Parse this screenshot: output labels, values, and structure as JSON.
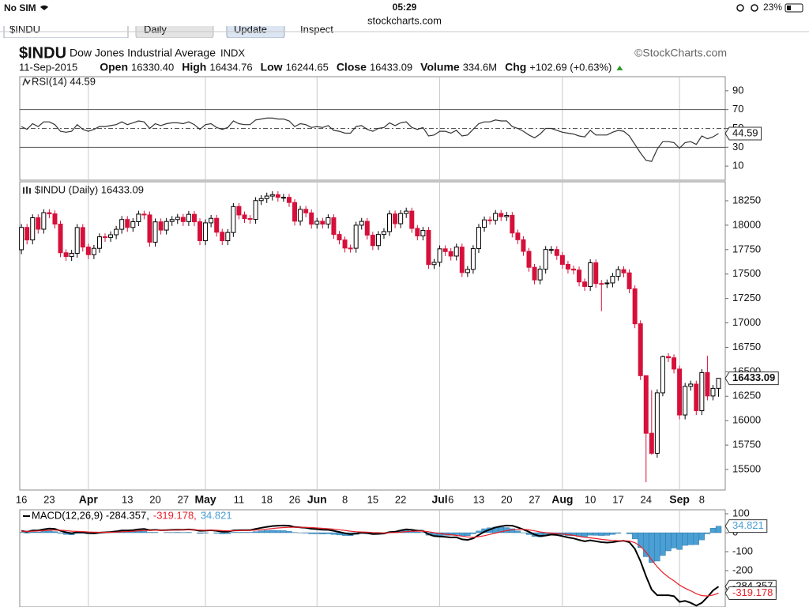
{
  "status_bar": {
    "carrier": "No SIM",
    "time": "05:29",
    "url": "stockcharts.com",
    "battery": "23%"
  },
  "toolbar": [
    "$INDU",
    "Daily",
    "Update",
    "Inspect"
  ],
  "header": {
    "symbol": "$INDU",
    "name": "Dow Jones Industrial Average",
    "exchange": "INDX",
    "credit": "©StockCharts.com",
    "date": "11-Sep-2015",
    "stats": [
      {
        "label": "Open",
        "value": "16330.40"
      },
      {
        "label": "High",
        "value": "16434.76"
      },
      {
        "label": "Low",
        "value": "16244.65"
      },
      {
        "label": "Close",
        "value": "16433.09"
      },
      {
        "label": "Volume",
        "value": "334.6M"
      },
      {
        "label": "Chg",
        "value": "+102.69 (+0.63%)"
      }
    ]
  },
  "chart_data": [
    {
      "type": "line",
      "title": "RSI(14) 44.59",
      "color": "#333333",
      "ylim": [
        -5,
        105
      ],
      "yticks": [
        10,
        30,
        50,
        70,
        90
      ],
      "hlines": [
        30,
        70
      ],
      "dashed_hline": 50,
      "value_label": "44.59",
      "values": [
        52,
        49,
        55,
        52,
        57,
        57,
        54,
        47,
        46,
        47,
        54,
        49,
        47,
        49,
        52,
        52,
        53,
        54,
        57,
        54,
        56,
        58,
        57,
        50,
        55,
        53,
        55,
        56,
        56,
        55,
        57,
        54,
        49,
        54,
        55,
        51,
        49,
        51,
        58,
        55,
        54,
        54,
        59,
        60,
        61,
        61,
        60,
        60,
        58,
        52,
        55,
        54,
        51,
        52,
        51,
        53,
        48,
        47,
        45,
        45,
        52,
        53,
        49,
        47,
        50,
        51,
        56,
        53,
        56,
        57,
        51,
        49,
        51,
        42,
        43,
        47,
        47,
        45,
        48,
        42,
        43,
        49,
        55,
        57,
        57,
        59,
        58,
        58,
        52,
        50,
        47,
        43,
        40,
        44,
        50,
        50,
        48,
        46,
        45,
        44,
        42,
        41,
        48,
        43,
        43,
        43,
        46,
        48,
        47,
        42,
        33,
        24,
        16,
        15,
        28,
        36,
        36,
        35,
        29,
        35,
        36,
        33,
        42,
        39,
        41,
        44.59
      ]
    },
    {
      "type": "candlestick",
      "title": "$INDU (Daily) 16433.09",
      "up_color": "#000000",
      "down_color": "#d6103b",
      "value_label": "16433.09",
      "ylim": [
        15290,
        18444
      ],
      "yticks": [
        15500,
        15750,
        16000,
        16250,
        16500,
        16750,
        17000,
        17250,
        17500,
        17750,
        18000,
        18250
      ],
      "xlim": [
        -0.3,
        126.2
      ],
      "xticks": [
        {
          "value": 0,
          "label": "16"
        },
        {
          "value": 5,
          "label": "23"
        },
        {
          "value": 12,
          "label": "Apr"
        },
        {
          "value": 19,
          "label": "13"
        },
        {
          "value": 24,
          "label": "20"
        },
        {
          "value": 29,
          "label": "27"
        },
        {
          "value": 33,
          "label": "May"
        },
        {
          "value": 39,
          "label": "11"
        },
        {
          "value": 44,
          "label": "18"
        },
        {
          "value": 49,
          "label": "26"
        },
        {
          "value": 53,
          "label": "Jun"
        },
        {
          "value": 58,
          "label": "8"
        },
        {
          "value": 63,
          "label": "15"
        },
        {
          "value": 68,
          "label": "22"
        },
        {
          "value": 75,
          "label": "Jul"
        },
        {
          "value": 77,
          "label": "6"
        },
        {
          "value": 82,
          "label": "13"
        },
        {
          "value": 87,
          "label": "20"
        },
        {
          "value": 92,
          "label": "27"
        },
        {
          "value": 97,
          "label": "Aug"
        },
        {
          "value": 102,
          "label": "10"
        },
        {
          "value": 107,
          "label": "17"
        },
        {
          "value": 112,
          "label": "24"
        },
        {
          "value": 118,
          "label": "Sep"
        },
        {
          "value": 122,
          "label": "8"
        }
      ],
      "open": [
        17749,
        17977,
        17849,
        18076,
        17959,
        18128,
        18116,
        18011,
        17718,
        17679,
        17712,
        17976,
        17776,
        17698,
        17763,
        17881,
        17875,
        17902,
        17958,
        18058,
        17977,
        18036,
        18113,
        18105,
        17826,
        18034,
        17950,
        18038,
        18058,
        18080,
        18037,
        18111,
        18035,
        17841,
        18024,
        18070,
        17928,
        17841,
        17925,
        18191,
        18105,
        18068,
        18060,
        18252,
        18272,
        18298,
        18312,
        18285,
        18285,
        18232,
        18041,
        18162,
        18126,
        18010,
        18040,
        18011,
        18076,
        17905,
        17849,
        17766,
        17764,
        18000,
        18039,
        17898,
        17791,
        17905,
        17935,
        18115,
        18015,
        18119,
        18144,
        17967,
        17890,
        17947,
        17597,
        17620,
        17758,
        17730,
        17684,
        17776,
        17515,
        17548,
        17760,
        17978,
        18054,
        18050,
        18120,
        18087,
        18100,
        17920,
        17851,
        17732,
        17569,
        17440,
        17550,
        17751,
        17751,
        17690,
        17599,
        17551,
        17541,
        17419,
        17373,
        17615,
        17403,
        17402,
        17409,
        17477,
        17545,
        17512,
        17349,
        16991,
        16460,
        15871,
        15666,
        16285,
        16655,
        16643,
        16528,
        16058,
        16351,
        16374,
        16102,
        16492,
        16253,
        16330.4
      ],
      "high": [
        18012,
        18012,
        18111,
        18111,
        18163,
        18163,
        18151,
        18046,
        17753,
        17747,
        18011,
        18011,
        17811,
        17798,
        17916,
        17916,
        17937,
        17993,
        18093,
        18093,
        18071,
        18148,
        18148,
        18140,
        18069,
        18069,
        18073,
        18093,
        18115,
        18115,
        18146,
        18146,
        18070,
        18059,
        18105,
        18105,
        17963,
        17960,
        18226,
        18226,
        18140,
        18103,
        18287,
        18307,
        18333,
        18347,
        18347,
        18320,
        18320,
        18267,
        18197,
        18197,
        18161,
        18075,
        18075,
        18111,
        18111,
        17940,
        17884,
        17801,
        18035,
        18074,
        18074,
        17933,
        17940,
        17970,
        18150,
        18150,
        18154,
        18179,
        18179,
        18002,
        17982,
        17982,
        17655,
        17793,
        17793,
        17765,
        17811,
        17811,
        17583,
        17795,
        18013,
        18089,
        18089,
        18155,
        18155,
        18135,
        18135,
        17955,
        17886,
        17767,
        17604,
        17585,
        17786,
        17786,
        17786,
        17725,
        17634,
        17586,
        17576,
        17454,
        17650,
        17650,
        17438,
        17444,
        17512,
        17580,
        17580,
        17547,
        17384,
        17026,
        16460,
        16312,
        16320,
        16666,
        16690,
        16678,
        16563,
        16386,
        16409,
        16409,
        16527,
        16664,
        16365,
        16434.76
      ],
      "low": [
        17704,
        17804,
        17804,
        17914,
        17914,
        18071,
        17966,
        17673,
        17634,
        17634,
        17667,
        17731,
        17653,
        17653,
        17718,
        17830,
        17830,
        17857,
        17913,
        17932,
        17932,
        17991,
        18060,
        17781,
        17781,
        17905,
        17905,
        17993,
        18013,
        17992,
        17992,
        17990,
        17796,
        17796,
        17979,
        17883,
        17796,
        17796,
        17880,
        18060,
        18023,
        18015,
        18015,
        18207,
        18227,
        18253,
        18240,
        18240,
        18187,
        17996,
        17996,
        18081,
        17965,
        17965,
        17966,
        17966,
        17860,
        17804,
        17721,
        17719,
        17719,
        17955,
        17853,
        17746,
        17746,
        17860,
        17890,
        17970,
        17970,
        18074,
        17922,
        17845,
        17845,
        17552,
        17552,
        17575,
        17685,
        17639,
        17639,
        17470,
        17470,
        17503,
        17715,
        17933,
        18005,
        18005,
        18042,
        18042,
        17875,
        17806,
        17687,
        17524,
        17395,
        17395,
        17505,
        17706,
        17645,
        17554,
        17506,
        17496,
        17374,
        17328,
        17328,
        17358,
        17120,
        17357,
        17364,
        17432,
        17467,
        17304,
        16946,
        16415,
        15370,
        15651,
        15621,
        16250,
        16600,
        16483,
        16013,
        16013,
        16306,
        16057,
        16057,
        16208,
        16208,
        16244.65
      ],
      "close": [
        17977,
        17849,
        18076,
        17959,
        18128,
        18116,
        18011,
        17718,
        17679,
        17712,
        17976,
        17776,
        17698,
        17763,
        17881,
        17875,
        17902,
        17958,
        18058,
        17977,
        18036,
        18113,
        18105,
        17826,
        18034,
        17950,
        18038,
        18058,
        18080,
        18037,
        18111,
        18035,
        17841,
        18024,
        18070,
        17928,
        17841,
        17925,
        18191,
        18105,
        18068,
        18060,
        18252,
        18272,
        18298,
        18312,
        18285,
        18285,
        18232,
        18041,
        18162,
        18126,
        18010,
        18040,
        18011,
        18076,
        17905,
        17849,
        17766,
        17764,
        18000,
        18039,
        17898,
        17791,
        17905,
        17935,
        18115,
        18015,
        18119,
        18144,
        17967,
        17890,
        17947,
        17597,
        17620,
        17758,
        17730,
        17684,
        17776,
        17515,
        17548,
        17760,
        17978,
        18054,
        18050,
        18120,
        18087,
        18100,
        17920,
        17851,
        17732,
        17569,
        17440,
        17550,
        17751,
        17751,
        17690,
        17599,
        17551,
        17541,
        17419,
        17373,
        17615,
        17403,
        17402,
        17409,
        17477,
        17545,
        17512,
        17349,
        16991,
        16460,
        15871,
        15666,
        16285,
        16655,
        16643,
        16528,
        16058,
        16351,
        16374,
        16102,
        16492,
        16253,
        16330,
        16433.09
      ]
    },
    {
      "type": "macd",
      "legend": [
        "MACD(12,26,9) -284.357,",
        "-319.178,",
        "34.821"
      ],
      "ylim": [
        -392,
        121
      ],
      "yticks": [
        -300,
        -200,
        -100,
        0,
        100
      ],
      "series": [
        {
          "kind": "line",
          "color": "#000000",
          "value_label": "-284.357",
          "values": [
            10,
            5,
            12,
            12,
            18,
            22,
            20,
            10,
            2,
            -3,
            3,
            2,
            -2,
            -3,
            0,
            2,
            4,
            7,
            12,
            12,
            14,
            18,
            20,
            14,
            15,
            13,
            14,
            15,
            16,
            16,
            17,
            15,
            10,
            11,
            13,
            10,
            5,
            5,
            12,
            13,
            14,
            14,
            20,
            26,
            31,
            35,
            37,
            38,
            37,
            30,
            28,
            26,
            21,
            19,
            16,
            15,
            10,
            4,
            -3,
            -8,
            -4,
            0,
            -2,
            -7,
            -6,
            -4,
            3,
            5,
            12,
            18,
            15,
            11,
            10,
            -8,
            -18,
            -20,
            -22,
            -25,
            -24,
            -35,
            -38,
            -30,
            -12,
            5,
            17,
            28,
            34,
            38,
            37,
            28,
            17,
            5,
            -10,
            -18,
            -15,
            -10,
            -12,
            -18,
            -25,
            -30,
            -38,
            -45,
            -40,
            -45,
            -50,
            -52,
            -50,
            -45,
            -42,
            -50,
            -85,
            -150,
            -230,
            -300,
            -330,
            -330,
            -330,
            -335,
            -365,
            -360,
            -370,
            -385,
            -370,
            -340,
            -305,
            -284.357
          ]
        },
        {
          "kind": "line",
          "color": "#e8202a",
          "value_label": "-319.178",
          "values": [
            8,
            7,
            8,
            9,
            11,
            13,
            14,
            13,
            11,
            8,
            7,
            6,
            4,
            3,
            2,
            2,
            2,
            3,
            5,
            6,
            8,
            10,
            12,
            12,
            13,
            13,
            13,
            14,
            14,
            15,
            15,
            15,
            14,
            13,
            13,
            13,
            11,
            10,
            10,
            11,
            12,
            12,
            14,
            16,
            19,
            22,
            25,
            27,
            29,
            29,
            29,
            28,
            27,
            25,
            23,
            21,
            19,
            16,
            12,
            8,
            5,
            4,
            3,
            1,
            0,
            -1,
            0,
            1,
            3,
            6,
            8,
            8,
            9,
            5,
            0,
            -4,
            -8,
            -11,
            -14,
            -18,
            -22,
            -24,
            -21,
            -16,
            -9,
            -2,
            5,
            11,
            16,
            18,
            18,
            15,
            10,
            4,
            0,
            -2,
            -4,
            -7,
            -10,
            -14,
            -19,
            -24,
            -27,
            -31,
            -35,
            -38,
            -41,
            -42,
            -42,
            -44,
            -52,
            -72,
            -103,
            -143,
            -180,
            -210,
            -234,
            -254,
            -276,
            -293,
            -306,
            -322,
            -332,
            -334,
            -329,
            -319.178
          ]
        },
        {
          "kind": "histogram",
          "color": "#4a9fd4",
          "value_label": "34.821",
          "values": [
            2,
            -2,
            4,
            3,
            7,
            9,
            6,
            -3,
            -9,
            -11,
            -4,
            -4,
            -6,
            -6,
            -2,
            0,
            2,
            4,
            7,
            6,
            6,
            8,
            8,
            2,
            2,
            0,
            1,
            1,
            2,
            1,
            2,
            0,
            -4,
            -2,
            0,
            -3,
            -6,
            -5,
            2,
            2,
            2,
            2,
            6,
            10,
            12,
            13,
            12,
            11,
            8,
            1,
            -1,
            -2,
            -6,
            -6,
            -7,
            -6,
            -9,
            -12,
            -15,
            -16,
            -9,
            -4,
            -5,
            -8,
            -6,
            -3,
            3,
            4,
            9,
            12,
            7,
            3,
            1,
            -13,
            -18,
            -16,
            -14,
            -14,
            -10,
            -17,
            -16,
            -6,
            9,
            21,
            26,
            30,
            29,
            27,
            21,
            10,
            -1,
            -10,
            -20,
            -22,
            -15,
            -8,
            -8,
            -11,
            -15,
            -16,
            -19,
            -21,
            -13,
            -14,
            -15,
            -14,
            -9,
            -3,
            0,
            -6,
            -33,
            -78,
            -127,
            -157,
            -150,
            -120,
            -96,
            -81,
            -89,
            -67,
            -64,
            -63,
            -38,
            -6,
            24,
            34.821
          ]
        }
      ]
    }
  ]
}
